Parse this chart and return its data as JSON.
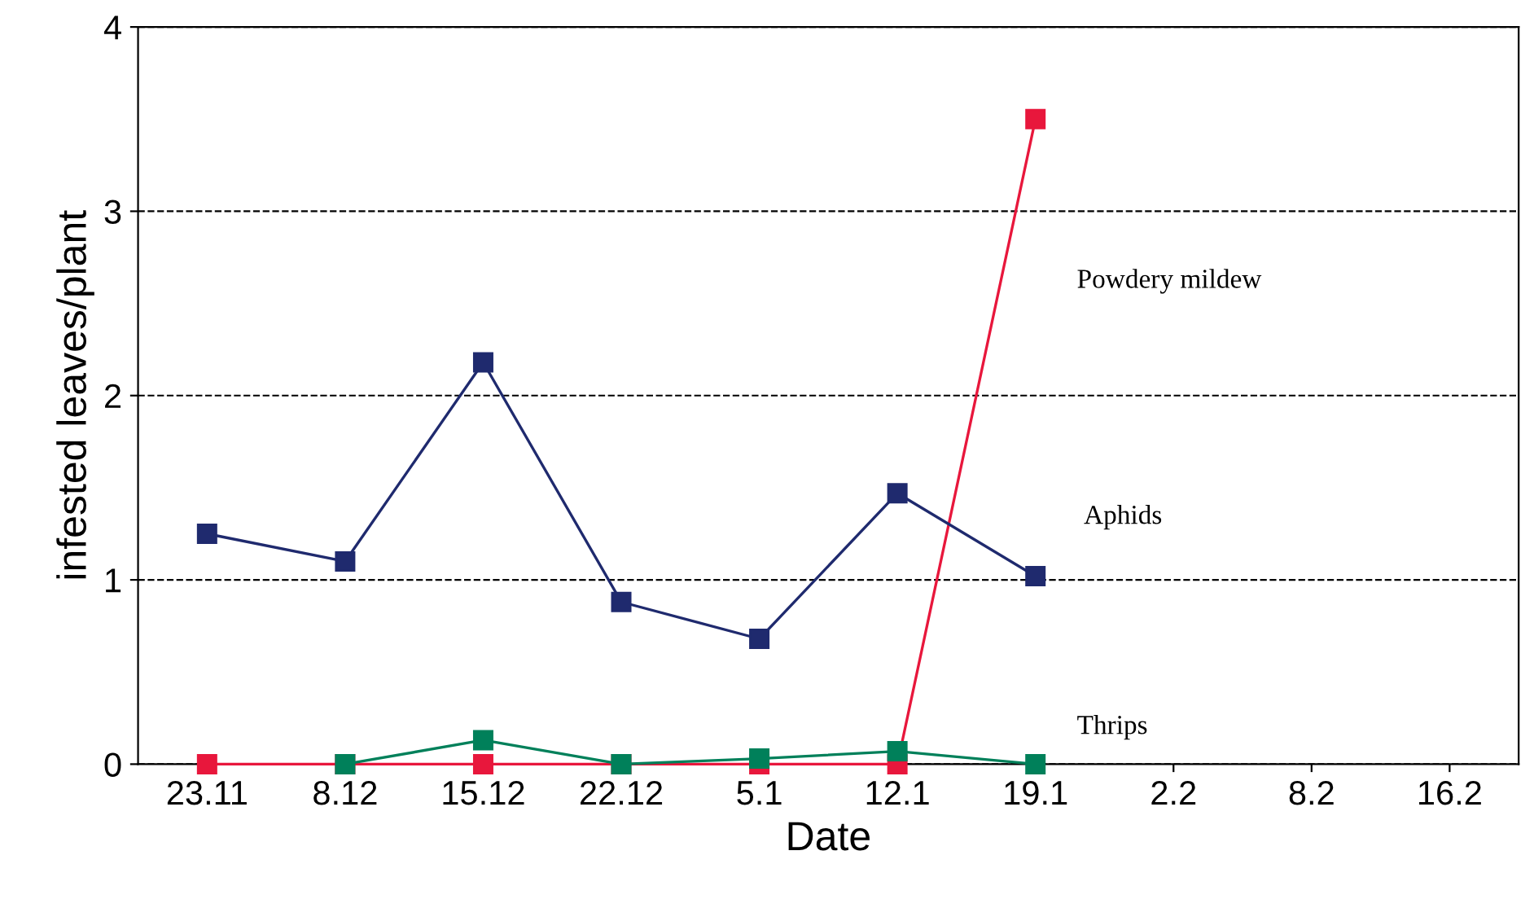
{
  "chart_data": {
    "type": "line",
    "xlabel": "Date",
    "ylabel": "infested leaves/plant",
    "categories": [
      "23.11",
      "8.12",
      "15.12",
      "22.12",
      "5.1",
      "12.1",
      "19.1",
      "2.2",
      "8.2",
      "16.2"
    ],
    "series": [
      {
        "name": "Aphids",
        "color": "#1f2a6e",
        "values": [
          1.25,
          1.1,
          2.18,
          0.88,
          0.68,
          1.47,
          1.02,
          null,
          null,
          null
        ]
      },
      {
        "name": "Thrips",
        "color": "#00805a",
        "values": [
          null,
          0,
          0.13,
          0,
          0.03,
          0.07,
          0,
          null,
          null,
          null
        ]
      },
      {
        "name": "Powdery mildew",
        "color": "#e8173c",
        "values": [
          0,
          0,
          0,
          0,
          0,
          0,
          3.5,
          null,
          null,
          null
        ]
      }
    ],
    "ylim": [
      0,
      4
    ],
    "yticks": [
      0,
      1,
      2,
      3,
      4
    ],
    "grid": "y",
    "marker": "square",
    "line_style": "solid",
    "legend": false
  }
}
